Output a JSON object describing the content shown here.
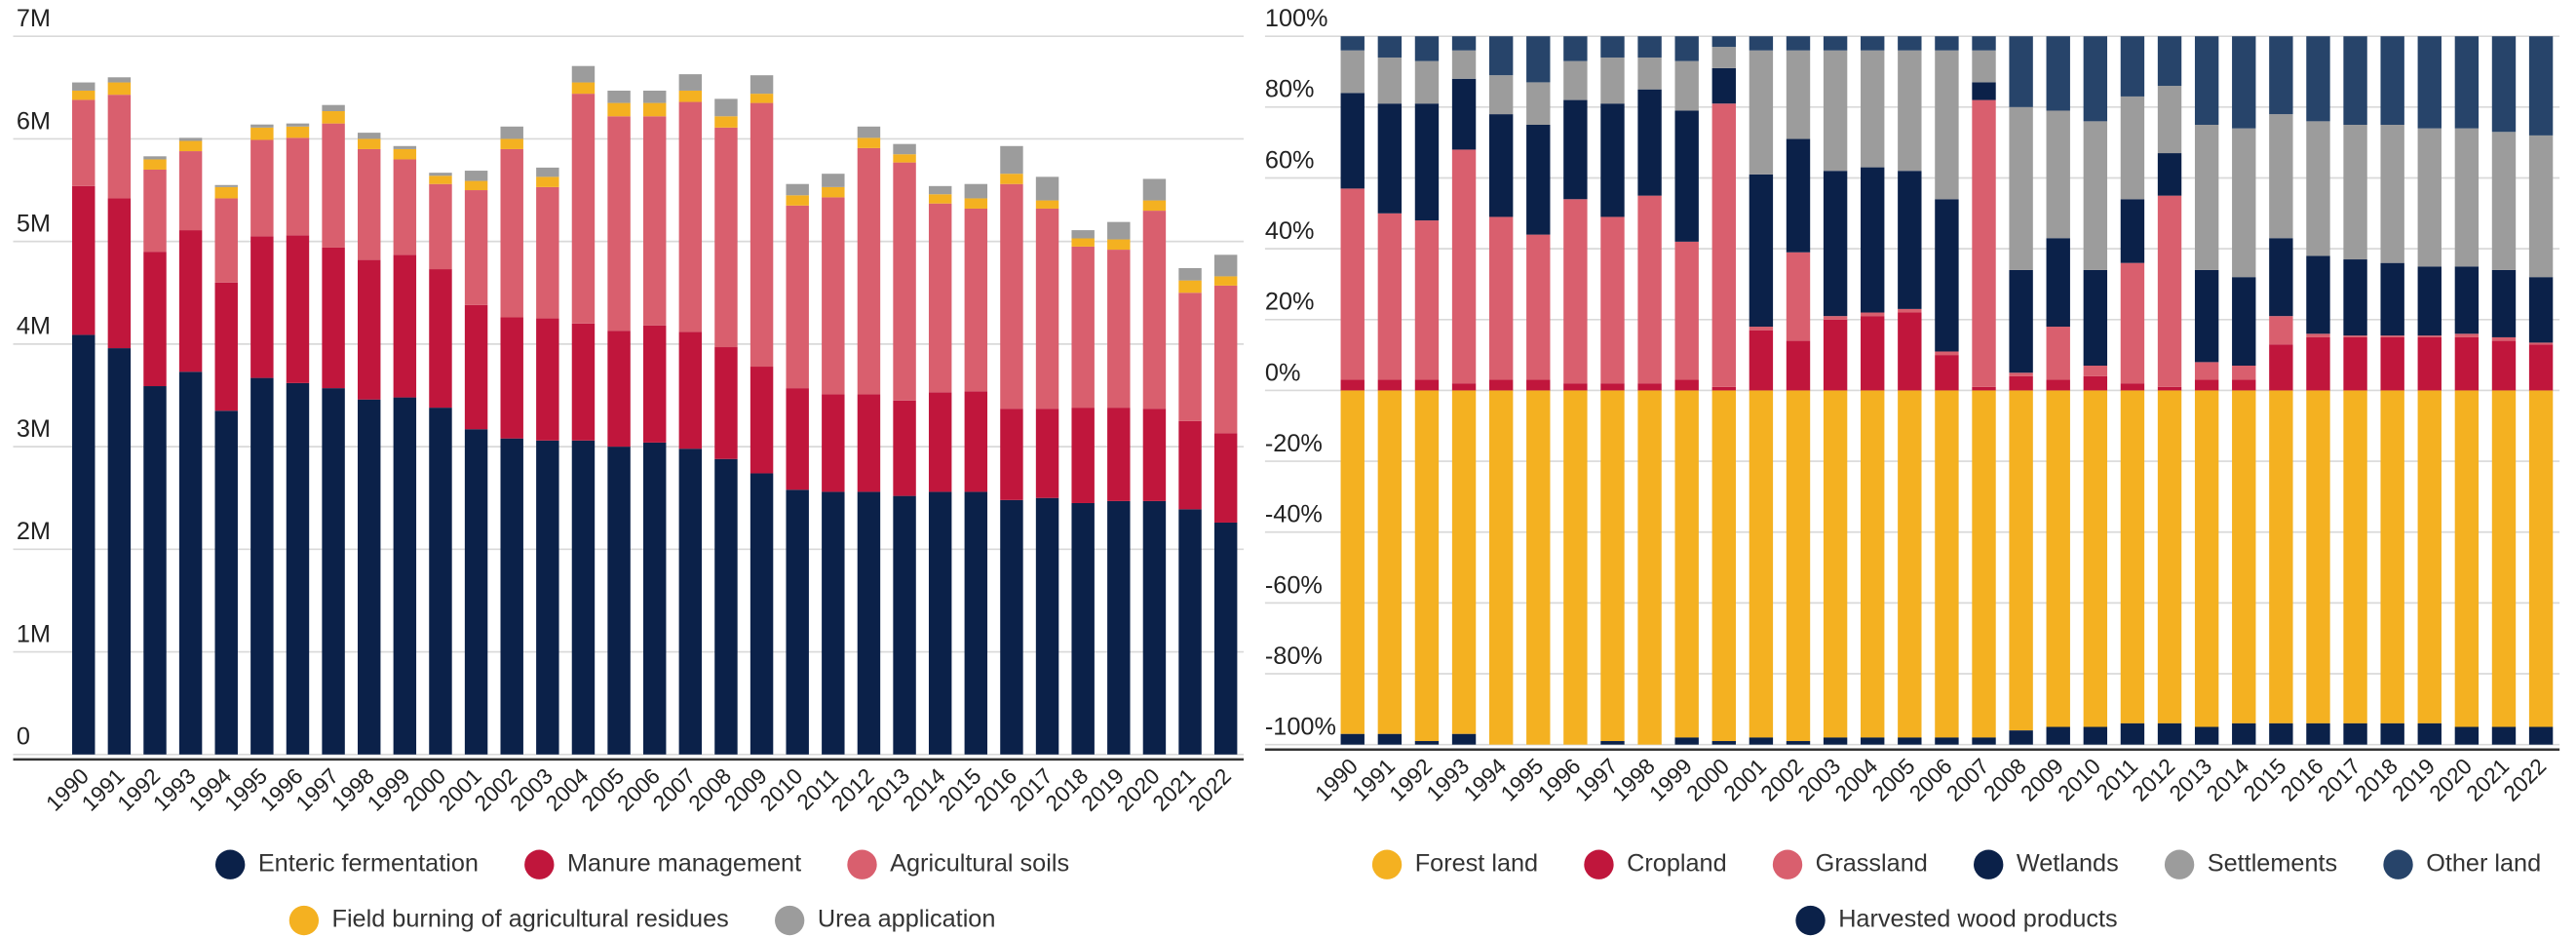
{
  "chart_data": [
    {
      "type": "bar",
      "stacked": true,
      "grid": true,
      "categories": [
        "1990",
        "1991",
        "1992",
        "1993",
        "1994",
        "1995",
        "1996",
        "1997",
        "1998",
        "1999",
        "2000",
        "2001",
        "2002",
        "2003",
        "2004",
        "2005",
        "2006",
        "2007",
        "2008",
        "2009",
        "2010",
        "2011",
        "2012",
        "2013",
        "2014",
        "2015",
        "2016",
        "2017",
        "2018",
        "2019",
        "2020",
        "2021",
        "2022"
      ],
      "ylim": [
        0,
        7000000
      ],
      "yticks": [
        0,
        {
          "value": 1000000,
          "label": "1M"
        },
        {
          "value": 2000000,
          "label": "2M"
        },
        {
          "value": 3000000,
          "label": "3M"
        },
        {
          "value": 4000000,
          "label": "4M"
        },
        {
          "value": 5000000,
          "label": "5M"
        },
        {
          "value": 6000000,
          "label": "6M"
        },
        {
          "value": 7000000,
          "label": "7M"
        }
      ],
      "series": [
        {
          "name": "Enteric fermentation",
          "color": "#0b2149",
          "values": [
            4090000,
            3960000,
            3590000,
            3730000,
            3350000,
            3670000,
            3620000,
            3570000,
            3460000,
            3480000,
            3380000,
            3170000,
            3080000,
            3060000,
            3060000,
            3000000,
            3040000,
            2980000,
            2880000,
            2740000,
            2580000,
            2560000,
            2560000,
            2520000,
            2560000,
            2560000,
            2480000,
            2500000,
            2450000,
            2470000,
            2470000,
            2390000,
            2260000
          ]
        },
        {
          "name": "Manure management",
          "color": "#c0163c",
          "values": [
            1450000,
            1460000,
            1310000,
            1380000,
            1250000,
            1380000,
            1440000,
            1370000,
            1360000,
            1390000,
            1350000,
            1210000,
            1180000,
            1190000,
            1140000,
            1130000,
            1140000,
            1140000,
            1090000,
            1040000,
            990000,
            950000,
            950000,
            930000,
            970000,
            980000,
            890000,
            870000,
            930000,
            910000,
            900000,
            860000,
            870000
          ]
        },
        {
          "name": "Agricultural soils",
          "color": "#d95f6e",
          "values": [
            840000,
            1010000,
            800000,
            770000,
            820000,
            940000,
            950000,
            1210000,
            1080000,
            930000,
            830000,
            1120000,
            1640000,
            1280000,
            2240000,
            2090000,
            2040000,
            2240000,
            2140000,
            2570000,
            1780000,
            1920000,
            2400000,
            2320000,
            1840000,
            1780000,
            2190000,
            1950000,
            1570000,
            1540000,
            1930000,
            1250000,
            1440000
          ]
        },
        {
          "name": "Field burning of agricultural residues",
          "color": "#f4b121",
          "values": [
            90000,
            120000,
            100000,
            100000,
            110000,
            120000,
            110000,
            120000,
            100000,
            100000,
            80000,
            90000,
            100000,
            100000,
            110000,
            130000,
            130000,
            110000,
            110000,
            90000,
            100000,
            100000,
            100000,
            80000,
            90000,
            100000,
            100000,
            80000,
            80000,
            100000,
            100000,
            120000,
            90000
          ]
        },
        {
          "name": "Urea application",
          "color": "#9c9c9c",
          "values": [
            80000,
            50000,
            30000,
            30000,
            20000,
            30000,
            30000,
            60000,
            60000,
            30000,
            30000,
            100000,
            120000,
            90000,
            160000,
            120000,
            120000,
            160000,
            170000,
            180000,
            110000,
            130000,
            110000,
            100000,
            80000,
            140000,
            270000,
            230000,
            80000,
            170000,
            210000,
            120000,
            210000
          ]
        }
      ]
    },
    {
      "type": "bar",
      "stacked": true,
      "grid": true,
      "categories": [
        "1990",
        "1991",
        "1992",
        "1993",
        "1994",
        "1995",
        "1996",
        "1997",
        "1998",
        "1999",
        "2000",
        "2001",
        "2002",
        "2003",
        "2004",
        "2005",
        "2006",
        "2007",
        "2008",
        "2009",
        "2010",
        "2011",
        "2012",
        "2013",
        "2014",
        "2015",
        "2016",
        "2017",
        "2018",
        "2019",
        "2020",
        "2021",
        "2022"
      ],
      "ylim": [
        -100,
        100
      ],
      "yticks": [
        {
          "value": -100,
          "label": "-100%"
        },
        {
          "value": -80,
          "label": "-80%"
        },
        {
          "value": -60,
          "label": "-60%"
        },
        {
          "value": -40,
          "label": "-40%"
        },
        {
          "value": -20,
          "label": "-20%"
        },
        {
          "value": 0,
          "label": "0%"
        },
        {
          "value": 20,
          "label": "20%"
        },
        {
          "value": 40,
          "label": "40%"
        },
        {
          "value": 60,
          "label": "60%"
        },
        {
          "value": 80,
          "label": "80%"
        },
        {
          "value": 100,
          "label": "100%"
        }
      ],
      "series": [
        {
          "name": "Forest land",
          "color": "#f4b121",
          "values": [
            -97,
            -97,
            -99,
            -97,
            -100,
            -100,
            -100,
            -99,
            -100,
            -98,
            -99,
            -98,
            -99,
            -98,
            -98,
            -98,
            -98,
            -98,
            -96,
            -95,
            -95,
            -94,
            -94,
            -95,
            -94,
            -94,
            -94,
            -94,
            -94,
            -94,
            -95,
            -95,
            -95
          ]
        },
        {
          "name": "Cropland",
          "color": "#c0163c",
          "values": [
            3,
            3,
            3,
            2,
            3,
            3,
            2,
            2,
            2,
            3,
            1,
            17,
            14,
            20,
            21,
            22,
            10,
            1,
            4,
            3,
            4,
            2,
            1,
            3,
            3,
            13,
            15,
            15,
            15,
            15,
            15,
            14,
            13
          ]
        },
        {
          "name": "Grassland",
          "color": "#d95f6e",
          "values": [
            54,
            47,
            45,
            66,
            46,
            41,
            52,
            47,
            53,
            39,
            80,
            1,
            25,
            1,
            1,
            1,
            1,
            81,
            1,
            15,
            3,
            34,
            54,
            5,
            4,
            8,
            1,
            0.5,
            0.5,
            0.5,
            1,
            1,
            0.5
          ]
        },
        {
          "name": "Wetlands",
          "color": "#0b2149",
          "values": [
            27,
            31,
            33,
            20,
            29,
            31,
            28,
            32,
            30,
            37,
            10,
            43,
            32,
            41,
            41,
            39,
            43,
            5,
            29,
            25,
            27,
            18,
            12,
            26,
            25,
            22,
            22,
            21.5,
            20.5,
            19.5,
            19,
            19,
            18.5
          ]
        },
        {
          "name": "Settlements",
          "color": "#9c9c9c",
          "values": [
            12,
            13,
            12,
            8,
            11,
            12,
            11,
            13,
            9,
            14,
            6,
            35,
            25,
            34,
            33,
            34,
            42,
            9,
            46,
            36,
            42,
            29,
            19,
            41,
            42,
            35,
            38,
            38,
            39,
            39,
            39,
            39,
            40
          ]
        },
        {
          "name": "Other land",
          "color": "#27446a",
          "values": [
            4,
            6,
            7,
            4,
            11,
            13,
            7,
            6,
            6,
            7,
            3,
            4,
            4,
            4,
            4,
            4,
            4,
            4,
            20,
            21,
            24,
            17,
            14,
            25,
            26,
            22,
            24,
            25,
            25,
            26,
            26,
            27,
            28
          ]
        },
        {
          "name": "Harvested wood products",
          "color": "#0b2149",
          "values": [
            -3,
            -3,
            -1,
            -3,
            0,
            0,
            0,
            -1,
            0,
            -2,
            -1,
            -2,
            -1,
            -2,
            -2,
            -2,
            -2,
            -2,
            -4,
            -5,
            -5,
            -6,
            -6,
            -5,
            -6,
            -6,
            -6,
            -6,
            -6,
            -6,
            -5,
            -5,
            -5
          ]
        }
      ]
    }
  ]
}
